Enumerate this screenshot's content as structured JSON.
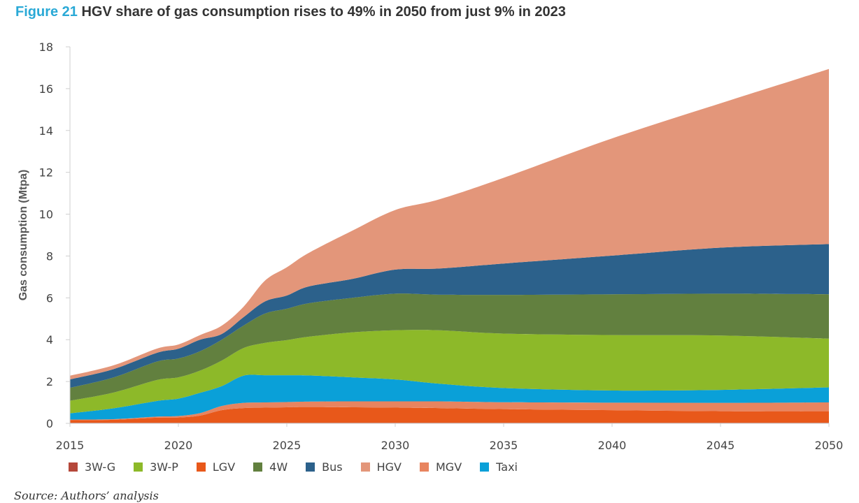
{
  "figure": {
    "number": "Figure 21",
    "title": "HGV share of gas consumption rises to 49% in 2050 from just 9% in 2023",
    "source": "Source: Authors’ analysis"
  },
  "chart_data": {
    "type": "area",
    "stacked": true,
    "title": "HGV share of gas consumption rises to 49% in 2050 from just 9% in 2023",
    "xlabel": "",
    "ylabel": "Gas consumption (Mtpa)",
    "xlim": [
      2015,
      2050
    ],
    "ylim": [
      0,
      18
    ],
    "x_ticks": [
      2015,
      2020,
      2025,
      2030,
      2035,
      2040,
      2045,
      2050
    ],
    "y_ticks": [
      0,
      2,
      4,
      6,
      8,
      10,
      12,
      14,
      16,
      18
    ],
    "grid": false,
    "legend_position": "bottom",
    "x": [
      2015,
      2017,
      2019,
      2020,
      2021,
      2022,
      2023,
      2024,
      2025,
      2026,
      2028,
      2030,
      2032,
      2035,
      2040,
      2045,
      2050
    ],
    "series": [
      {
        "name": "3W-G",
        "color": "#b5473a",
        "values": [
          0.03,
          0.03,
          0.03,
          0.03,
          0.03,
          0.03,
          0.03,
          0.03,
          0.03,
          0.03,
          0.03,
          0.03,
          0.03,
          0.03,
          0.03,
          0.03,
          0.03
        ]
      },
      {
        "name": "LGV",
        "color": "#e8581a",
        "values": [
          0.12,
          0.14,
          0.24,
          0.25,
          0.34,
          0.6,
          0.7,
          0.72,
          0.74,
          0.75,
          0.74,
          0.72,
          0.7,
          0.65,
          0.6,
          0.55,
          0.55
        ]
      },
      {
        "name": "MGV",
        "color": "#e8845f",
        "values": [
          0.03,
          0.03,
          0.05,
          0.07,
          0.12,
          0.2,
          0.25,
          0.25,
          0.25,
          0.26,
          0.28,
          0.3,
          0.32,
          0.33,
          0.36,
          0.4,
          0.42
        ]
      },
      {
        "name": "Taxi",
        "color": "#0aa0d8",
        "values": [
          0.3,
          0.52,
          0.75,
          0.83,
          0.97,
          0.95,
          1.3,
          1.3,
          1.28,
          1.25,
          1.15,
          1.05,
          0.85,
          0.68,
          0.58,
          0.62,
          0.72
        ]
      },
      {
        "name": "3W-P",
        "color": "#8db929",
        "values": [
          0.6,
          0.75,
          1.0,
          1.02,
          1.06,
          1.22,
          1.32,
          1.55,
          1.68,
          1.85,
          2.15,
          2.35,
          2.55,
          2.6,
          2.65,
          2.6,
          2.33
        ]
      },
      {
        "name": "4W",
        "color": "#62803f",
        "values": [
          0.62,
          0.72,
          0.88,
          0.9,
          0.93,
          1.0,
          1.07,
          1.4,
          1.5,
          1.6,
          1.65,
          1.75,
          1.7,
          1.85,
          1.95,
          2.0,
          2.12
        ]
      },
      {
        "name": "Bus",
        "color": "#2c618b",
        "values": [
          0.4,
          0.4,
          0.42,
          0.47,
          0.55,
          0.27,
          0.4,
          0.58,
          0.63,
          0.8,
          0.9,
          1.15,
          1.25,
          1.5,
          1.85,
          2.2,
          2.4
        ]
      },
      {
        "name": "HGV",
        "color": "#e3967a",
        "values": [
          0.18,
          0.18,
          0.2,
          0.2,
          0.22,
          0.4,
          0.5,
          1.0,
          1.35,
          1.6,
          2.3,
          2.85,
          3.3,
          4.1,
          5.6,
          6.9,
          8.37
        ]
      }
    ],
    "legend_order": [
      "3W-G",
      "3W-P",
      "LGV",
      "4W",
      "Bus",
      "HGV",
      "MGV",
      "Taxi"
    ]
  }
}
